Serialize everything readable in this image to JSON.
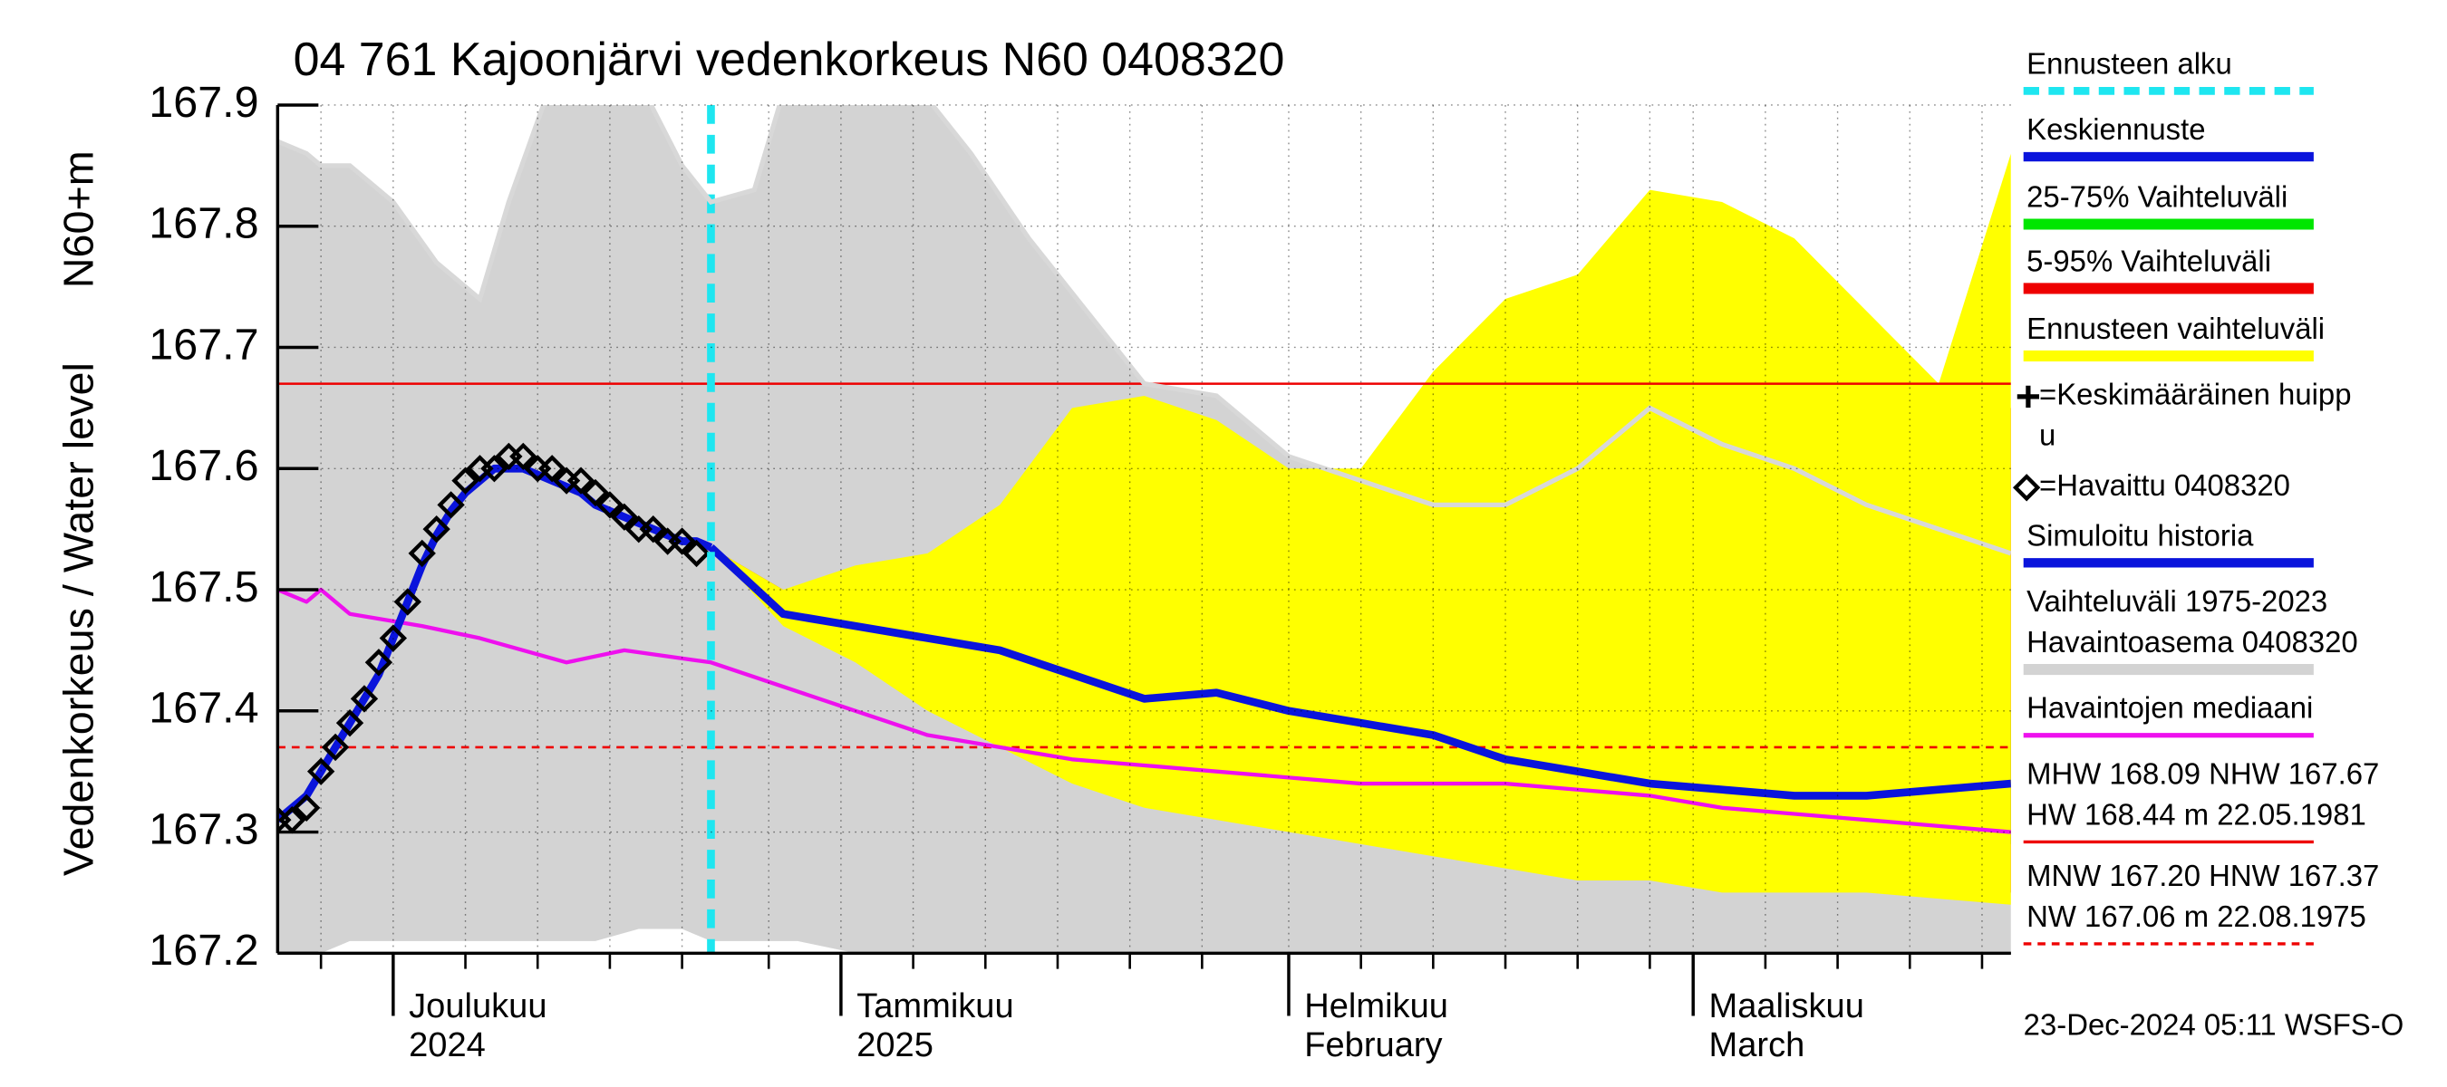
{
  "chart_data": {
    "type": "line",
    "title": "04 761 Kajoonjärvi vedenkorkeus N60 0408320",
    "ylabel": "Vedenkorkeus / Water level",
    "yunit": "N60+m",
    "footer": "23-Dec-2024 05:11 WSFS-O",
    "xlim": [
      0,
      120
    ],
    "xticks": [
      {
        "value": 8,
        "label": [
          "Joulukuu",
          "2024"
        ]
      },
      {
        "value": 39,
        "label": [
          "Tammikuu",
          "2025"
        ]
      },
      {
        "value": 70,
        "label": [
          "Helmikuu",
          "February"
        ]
      },
      {
        "value": 98,
        "label": [
          "Maaliskuu",
          "March"
        ]
      }
    ],
    "xminorticks": [
      3,
      13,
      18,
      23,
      28,
      34,
      44,
      49,
      54,
      59,
      64,
      75,
      80,
      85,
      90,
      95,
      103,
      108,
      113,
      118
    ],
    "ylim": [
      167.2,
      167.9
    ],
    "yticks": [
      167.2,
      167.3,
      167.4,
      167.5,
      167.6,
      167.7,
      167.8,
      167.9
    ],
    "grid": true,
    "series": [
      {
        "name": [
          "Ennusteen alku"
        ],
        "style": "vline-dashed",
        "color": "#1ee6f0",
        "x": 30
      },
      {
        "name": [
          "Keskiennuste"
        ],
        "style": "line",
        "color": "#0a14dc",
        "x": [
          30,
          35,
          40,
          45,
          50,
          55,
          60,
          65,
          70,
          75,
          80,
          85,
          90,
          95,
          100,
          105,
          110,
          115,
          120
        ],
        "values": [
          167.535,
          167.48,
          167.47,
          167.46,
          167.45,
          167.43,
          167.41,
          167.415,
          167.4,
          167.39,
          167.38,
          167.36,
          167.35,
          167.34,
          167.335,
          167.33,
          167.33,
          167.335,
          167.34
        ]
      },
      {
        "name": [
          "25-75% Vaihteluväli"
        ],
        "style": "band",
        "color": "#00e600",
        "x": [
          30,
          35,
          40,
          45,
          50,
          55,
          60,
          65,
          70,
          75,
          80,
          85,
          90,
          95,
          100,
          105,
          110,
          115,
          120
        ],
        "upper": [
          167.535,
          167.49,
          167.49,
          167.5,
          167.49,
          167.49,
          167.47,
          167.46,
          167.45,
          167.44,
          167.44,
          167.43,
          167.41,
          167.39,
          167.38,
          167.37,
          167.37,
          167.38,
          167.4
        ],
        "lower": [
          167.535,
          167.48,
          167.46,
          167.44,
          167.42,
          167.4,
          167.38,
          167.37,
          167.36,
          167.35,
          167.34,
          167.33,
          167.32,
          167.31,
          167.3,
          167.3,
          167.29,
          167.29,
          167.29
        ]
      },
      {
        "name": [
          "5-95% Vaihteluväli"
        ],
        "style": "band",
        "color": "#ee0000",
        "x": [
          30,
          35,
          40,
          45,
          50,
          55,
          60,
          65,
          70,
          75,
          80,
          85,
          90,
          95,
          100,
          105,
          110,
          115,
          120
        ],
        "upper": [
          167.535,
          167.5,
          167.51,
          167.52,
          167.55,
          167.55,
          167.54,
          167.53,
          167.52,
          167.51,
          167.52,
          167.52,
          167.51,
          167.51,
          167.51,
          167.52,
          167.58,
          167.65,
          167.65
        ],
        "lower": [
          167.535,
          167.48,
          167.45,
          167.42,
          167.39,
          167.37,
          167.35,
          167.34,
          167.33,
          167.32,
          167.31,
          167.3,
          167.29,
          167.28,
          167.27,
          167.26,
          167.26,
          167.255,
          167.25
        ]
      },
      {
        "name": [
          "Ennusteen vaihteluväli"
        ],
        "style": "band",
        "color": "#ffff00",
        "x": [
          30,
          35,
          40,
          45,
          50,
          55,
          60,
          65,
          70,
          75,
          80,
          85,
          90,
          95,
          100,
          105,
          110,
          115,
          120
        ],
        "upper": [
          167.535,
          167.5,
          167.52,
          167.53,
          167.57,
          167.65,
          167.66,
          167.64,
          167.6,
          167.6,
          167.68,
          167.74,
          167.76,
          167.83,
          167.82,
          167.79,
          167.73,
          167.67,
          167.86
        ],
        "lower": [
          167.535,
          167.47,
          167.44,
          167.4,
          167.37,
          167.34,
          167.32,
          167.31,
          167.3,
          167.29,
          167.28,
          167.27,
          167.26,
          167.26,
          167.25,
          167.25,
          167.25,
          167.245,
          167.24
        ]
      },
      {
        "name": [
          "=Keskimääräinen huipp",
          "u"
        ],
        "style": "marker-plus",
        "color": "#000000"
      },
      {
        "name": [
          "=Havaittu 0408320"
        ],
        "style": "marker-diamond",
        "color": "#000000",
        "x": [
          0,
          1,
          2,
          3,
          4,
          5,
          6,
          7,
          8,
          9,
          10,
          11,
          12,
          13,
          14,
          15,
          16,
          17,
          18,
          19,
          20,
          21,
          22,
          23,
          24,
          25,
          26,
          27,
          28,
          29
        ],
        "values": [
          167.31,
          167.31,
          167.32,
          167.35,
          167.37,
          167.39,
          167.41,
          167.44,
          167.46,
          167.49,
          167.53,
          167.55,
          167.57,
          167.59,
          167.6,
          167.6,
          167.61,
          167.61,
          167.6,
          167.6,
          167.59,
          167.59,
          167.58,
          167.57,
          167.56,
          167.55,
          167.55,
          167.54,
          167.54,
          167.53
        ]
      },
      {
        "name": [
          "Simuloitu historia"
        ],
        "style": "line",
        "color": "#0a14dc",
        "x": [
          0,
          1,
          2,
          3,
          4,
          5,
          6,
          7,
          8,
          9,
          10,
          11,
          12,
          13,
          14,
          15,
          16,
          17,
          18,
          19,
          20,
          21,
          22,
          23,
          24,
          25,
          26,
          27,
          28,
          29,
          30
        ],
        "values": [
          167.31,
          167.32,
          167.33,
          167.35,
          167.37,
          167.39,
          167.41,
          167.43,
          167.46,
          167.49,
          167.52,
          167.545,
          167.565,
          167.58,
          167.59,
          167.6,
          167.6,
          167.6,
          167.595,
          167.59,
          167.585,
          167.58,
          167.57,
          167.565,
          167.56,
          167.555,
          167.55,
          167.545,
          167.54,
          167.54,
          167.535
        ]
      },
      {
        "name": [
          "Vaihteluväli 1975-2023",
          " Havaintoasema 0408320"
        ],
        "style": "band",
        "color": "#d3d3d3",
        "x": [
          0,
          2,
          3,
          5,
          8,
          11,
          14,
          16,
          19,
          22,
          25,
          28,
          30,
          33,
          36,
          40,
          44,
          48,
          52,
          56,
          60,
          65,
          70,
          75,
          80,
          85,
          90,
          95,
          100,
          105,
          110,
          115,
          120
        ],
        "upper": [
          167.87,
          167.86,
          167.85,
          167.85,
          167.82,
          167.77,
          167.74,
          167.82,
          167.92,
          167.95,
          167.92,
          167.85,
          167.82,
          167.83,
          167.95,
          167.95,
          167.92,
          167.86,
          167.79,
          167.73,
          167.67,
          167.66,
          167.61,
          167.59,
          167.57,
          167.57,
          167.6,
          167.65,
          167.62,
          167.6,
          167.57,
          167.55,
          167.53
        ],
        "lower": [
          167.19,
          167.19,
          167.2,
          167.21,
          167.21,
          167.21,
          167.21,
          167.21,
          167.21,
          167.21,
          167.22,
          167.22,
          167.21,
          167.21,
          167.21,
          167.2,
          167.19,
          167.19,
          167.19,
          167.19,
          167.19,
          167.19,
          167.19,
          167.19,
          167.19,
          167.19,
          167.19,
          167.19,
          167.19,
          167.19,
          167.19,
          167.19,
          167.19
        ]
      },
      {
        "name": [
          "Havaintojen mediaani"
        ],
        "style": "thin-line",
        "color": "#ee10ee",
        "x": [
          0,
          2,
          3,
          5,
          10,
          14,
          20,
          24,
          30,
          35,
          40,
          45,
          50,
          55,
          60,
          65,
          70,
          75,
          80,
          85,
          90,
          95,
          100,
          105,
          110,
          115,
          120
        ],
        "values": [
          167.5,
          167.49,
          167.5,
          167.48,
          167.47,
          167.46,
          167.44,
          167.45,
          167.44,
          167.42,
          167.4,
          167.38,
          167.37,
          167.36,
          167.355,
          167.35,
          167.345,
          167.34,
          167.34,
          167.34,
          167.335,
          167.33,
          167.32,
          167.315,
          167.31,
          167.305,
          167.3
        ]
      },
      {
        "name": [
          "MHW 168.09 NHW 167.67",
          "HW 168.44 m 22.05.1981"
        ],
        "style": "hline",
        "color": "#ee0000",
        "value": 167.67
      },
      {
        "name": [
          "MNW 167.20 HNW 167.37",
          "NW 167.06 m 22.08.1975"
        ],
        "style": "hline-dashed",
        "color": "#ee0000",
        "value": 167.37
      }
    ]
  }
}
